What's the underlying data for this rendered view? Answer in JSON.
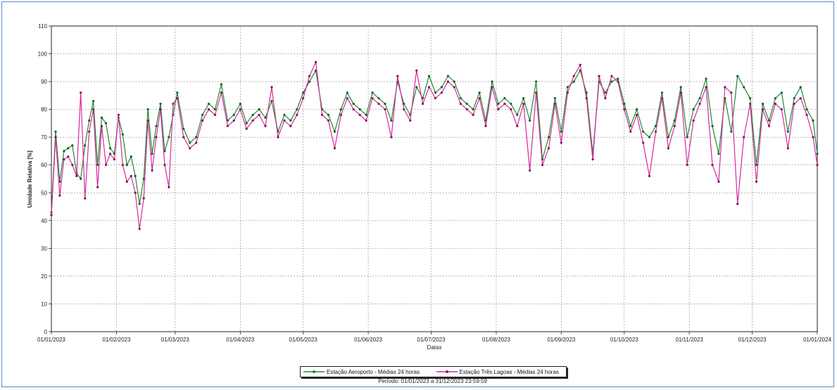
{
  "chart_data": {
    "type": "line",
    "xlabel": "Datas",
    "ylabel": "Umidade Relativa [%]",
    "ylim": [
      0,
      110
    ],
    "yticks": [
      0,
      10,
      20,
      30,
      40,
      50,
      60,
      70,
      80,
      90,
      100,
      110
    ],
    "xticks": [
      "01/01/2023",
      "01/02/2023",
      "01/03/2023",
      "01/04/2023",
      "01/05/2023",
      "01/06/2023",
      "01/07/2023",
      "01/08/2023",
      "01/09/2023",
      "01/10/2023",
      "01/11/2023",
      "01/12/2023",
      "01/01/2024"
    ],
    "xlim": [
      "2023-01-01",
      "2024-01-01"
    ],
    "grid": true,
    "legend_position": "bottom",
    "series": [
      {
        "name": "Estação Aeroporto - Médias 24 horas",
        "color": "#1e8a2e",
        "x": [
          "2023-01-01",
          "2023-01-03",
          "2023-01-05",
          "2023-01-07",
          "2023-01-09",
          "2023-01-11",
          "2023-01-13",
          "2023-01-15",
          "2023-01-17",
          "2023-01-19",
          "2023-01-21",
          "2023-01-23",
          "2023-01-25",
          "2023-01-27",
          "2023-01-29",
          "2023-01-31",
          "2023-02-02",
          "2023-02-04",
          "2023-02-06",
          "2023-02-08",
          "2023-02-10",
          "2023-02-12",
          "2023-02-14",
          "2023-02-16",
          "2023-02-18",
          "2023-02-20",
          "2023-02-22",
          "2023-02-24",
          "2023-02-26",
          "2023-02-28",
          "2023-03-02",
          "2023-03-05",
          "2023-03-08",
          "2023-03-11",
          "2023-03-14",
          "2023-03-17",
          "2023-03-20",
          "2023-03-23",
          "2023-03-26",
          "2023-03-29",
          "2023-04-01",
          "2023-04-04",
          "2023-04-07",
          "2023-04-10",
          "2023-04-13",
          "2023-04-16",
          "2023-04-19",
          "2023-04-22",
          "2023-04-25",
          "2023-04-28",
          "2023-05-01",
          "2023-05-04",
          "2023-05-07",
          "2023-05-10",
          "2023-05-13",
          "2023-05-16",
          "2023-05-19",
          "2023-05-22",
          "2023-05-25",
          "2023-05-28",
          "2023-05-31",
          "2023-06-03",
          "2023-06-06",
          "2023-06-09",
          "2023-06-12",
          "2023-06-15",
          "2023-06-18",
          "2023-06-21",
          "2023-06-24",
          "2023-06-27",
          "2023-06-30",
          "2023-07-03",
          "2023-07-06",
          "2023-07-09",
          "2023-07-12",
          "2023-07-15",
          "2023-07-18",
          "2023-07-21",
          "2023-07-24",
          "2023-07-27",
          "2023-07-30",
          "2023-08-02",
          "2023-08-05",
          "2023-08-08",
          "2023-08-11",
          "2023-08-14",
          "2023-08-17",
          "2023-08-20",
          "2023-08-23",
          "2023-08-26",
          "2023-08-29",
          "2023-09-01",
          "2023-09-04",
          "2023-09-07",
          "2023-09-10",
          "2023-09-13",
          "2023-09-16",
          "2023-09-19",
          "2023-09-22",
          "2023-09-25",
          "2023-09-28",
          "2023-10-01",
          "2023-10-04",
          "2023-10-07",
          "2023-10-10",
          "2023-10-13",
          "2023-10-16",
          "2023-10-19",
          "2023-10-22",
          "2023-10-25",
          "2023-10-28",
          "2023-10-31",
          "2023-11-03",
          "2023-11-06",
          "2023-11-09",
          "2023-11-12",
          "2023-11-15",
          "2023-11-18",
          "2023-11-21",
          "2023-11-24",
          "2023-11-27",
          "2023-11-30",
          "2023-12-03",
          "2023-12-06",
          "2023-12-09",
          "2023-12-12",
          "2023-12-15",
          "2023-12-18",
          "2023-12-21",
          "2023-12-24",
          "2023-12-27",
          "2023-12-30",
          "2024-01-01"
        ],
        "y": [
          43,
          72,
          54,
          65,
          66,
          67,
          57,
          55,
          67,
          76,
          83,
          60,
          77,
          75,
          66,
          64,
          77,
          71,
          60,
          63,
          56,
          46,
          55,
          80,
          64,
          74,
          82,
          65,
          70,
          78,
          86,
          73,
          68,
          70,
          78,
          82,
          80,
          89,
          76,
          78,
          82,
          75,
          78,
          80,
          77,
          83,
          72,
          78,
          76,
          80,
          86,
          90,
          94,
          80,
          78,
          72,
          80,
          86,
          82,
          80,
          78,
          86,
          84,
          82,
          76,
          90,
          82,
          78,
          88,
          84,
          92,
          86,
          88,
          92,
          90,
          84,
          82,
          80,
          86,
          76,
          90,
          82,
          84,
          82,
          78,
          84,
          76,
          90,
          62,
          70,
          84,
          72,
          88,
          90,
          94,
          86,
          64,
          90,
          86,
          90,
          91,
          82,
          74,
          80,
          72,
          70,
          74,
          86,
          70,
          76,
          88,
          70,
          80,
          84,
          91,
          74,
          64,
          84,
          72,
          92,
          88,
          84,
          60,
          82,
          76,
          84,
          86,
          72,
          84,
          88,
          80,
          76,
          64
        ]
      },
      {
        "name": "Estação Três Lagoas - Médias 24 horas",
        "color": "#d42a9e",
        "x": [
          "2023-01-01",
          "2023-01-03",
          "2023-01-05",
          "2023-01-07",
          "2023-01-09",
          "2023-01-11",
          "2023-01-13",
          "2023-01-15",
          "2023-01-17",
          "2023-01-19",
          "2023-01-21",
          "2023-01-23",
          "2023-01-25",
          "2023-01-27",
          "2023-01-29",
          "2023-01-31",
          "2023-02-02",
          "2023-02-04",
          "2023-02-06",
          "2023-02-08",
          "2023-02-10",
          "2023-02-12",
          "2023-02-14",
          "2023-02-16",
          "2023-02-18",
          "2023-02-20",
          "2023-02-22",
          "2023-02-24",
          "2023-02-26",
          "2023-02-28",
          "2023-03-02",
          "2023-03-05",
          "2023-03-08",
          "2023-03-11",
          "2023-03-14",
          "2023-03-17",
          "2023-03-20",
          "2023-03-23",
          "2023-03-26",
          "2023-03-29",
          "2023-04-01",
          "2023-04-04",
          "2023-04-07",
          "2023-04-10",
          "2023-04-13",
          "2023-04-16",
          "2023-04-19",
          "2023-04-22",
          "2023-04-25",
          "2023-04-28",
          "2023-05-01",
          "2023-05-04",
          "2023-05-07",
          "2023-05-10",
          "2023-05-13",
          "2023-05-16",
          "2023-05-19",
          "2023-05-22",
          "2023-05-25",
          "2023-05-28",
          "2023-05-31",
          "2023-06-03",
          "2023-06-06",
          "2023-06-09",
          "2023-06-12",
          "2023-06-15",
          "2023-06-18",
          "2023-06-21",
          "2023-06-24",
          "2023-06-27",
          "2023-06-30",
          "2023-07-03",
          "2023-07-06",
          "2023-07-09",
          "2023-07-12",
          "2023-07-15",
          "2023-07-18",
          "2023-07-21",
          "2023-07-24",
          "2023-07-27",
          "2023-07-30",
          "2023-08-02",
          "2023-08-05",
          "2023-08-08",
          "2023-08-11",
          "2023-08-14",
          "2023-08-17",
          "2023-08-20",
          "2023-08-23",
          "2023-08-26",
          "2023-08-29",
          "2023-09-01",
          "2023-09-04",
          "2023-09-07",
          "2023-09-10",
          "2023-09-13",
          "2023-09-16",
          "2023-09-19",
          "2023-09-22",
          "2023-09-25",
          "2023-09-28",
          "2023-10-01",
          "2023-10-04",
          "2023-10-07",
          "2023-10-10",
          "2023-10-13",
          "2023-10-16",
          "2023-10-19",
          "2023-10-22",
          "2023-10-25",
          "2023-10-28",
          "2023-10-31",
          "2023-11-03",
          "2023-11-06",
          "2023-11-09",
          "2023-11-12",
          "2023-11-15",
          "2023-11-18",
          "2023-11-21",
          "2023-11-24",
          "2023-11-27",
          "2023-11-30",
          "2023-12-03",
          "2023-12-06",
          "2023-12-09",
          "2023-12-12",
          "2023-12-15",
          "2023-12-18",
          "2023-12-21",
          "2023-12-24",
          "2023-12-27",
          "2023-12-30",
          "2024-01-01"
        ],
        "y": [
          42,
          70,
          49,
          62,
          63,
          60,
          56,
          86,
          48,
          72,
          80,
          52,
          74,
          60,
          64,
          62,
          78,
          60,
          54,
          56,
          50,
          37,
          48,
          76,
          58,
          70,
          80,
          60,
          52,
          82,
          84,
          70,
          66,
          68,
          76,
          80,
          78,
          86,
          74,
          76,
          80,
          73,
          76,
          78,
          74,
          88,
          70,
          76,
          74,
          78,
          84,
          92,
          97,
          78,
          76,
          66,
          78,
          84,
          80,
          78,
          76,
          84,
          82,
          80,
          70,
          92,
          80,
          76,
          94,
          82,
          88,
          84,
          86,
          90,
          88,
          82,
          80,
          78,
          84,
          74,
          88,
          80,
          82,
          80,
          74,
          82,
          58,
          86,
          60,
          66,
          82,
          68,
          86,
          92,
          96,
          84,
          62,
          92,
          84,
          92,
          90,
          80,
          72,
          78,
          68,
          56,
          72,
          84,
          66,
          74,
          86,
          60,
          76,
          82,
          88,
          60,
          54,
          88,
          86,
          46,
          70,
          82,
          54,
          80,
          74,
          82,
          80,
          66,
          82,
          84,
          78,
          70,
          60
        ]
      }
    ]
  },
  "legend": {
    "item1": "Estação Aeroporto - Médias 24 horas",
    "item2": "Estação Três Lagoas - Médias 24 horas"
  },
  "period": "Período: 01/01/2023 a 31/12/2023 23:59:59"
}
